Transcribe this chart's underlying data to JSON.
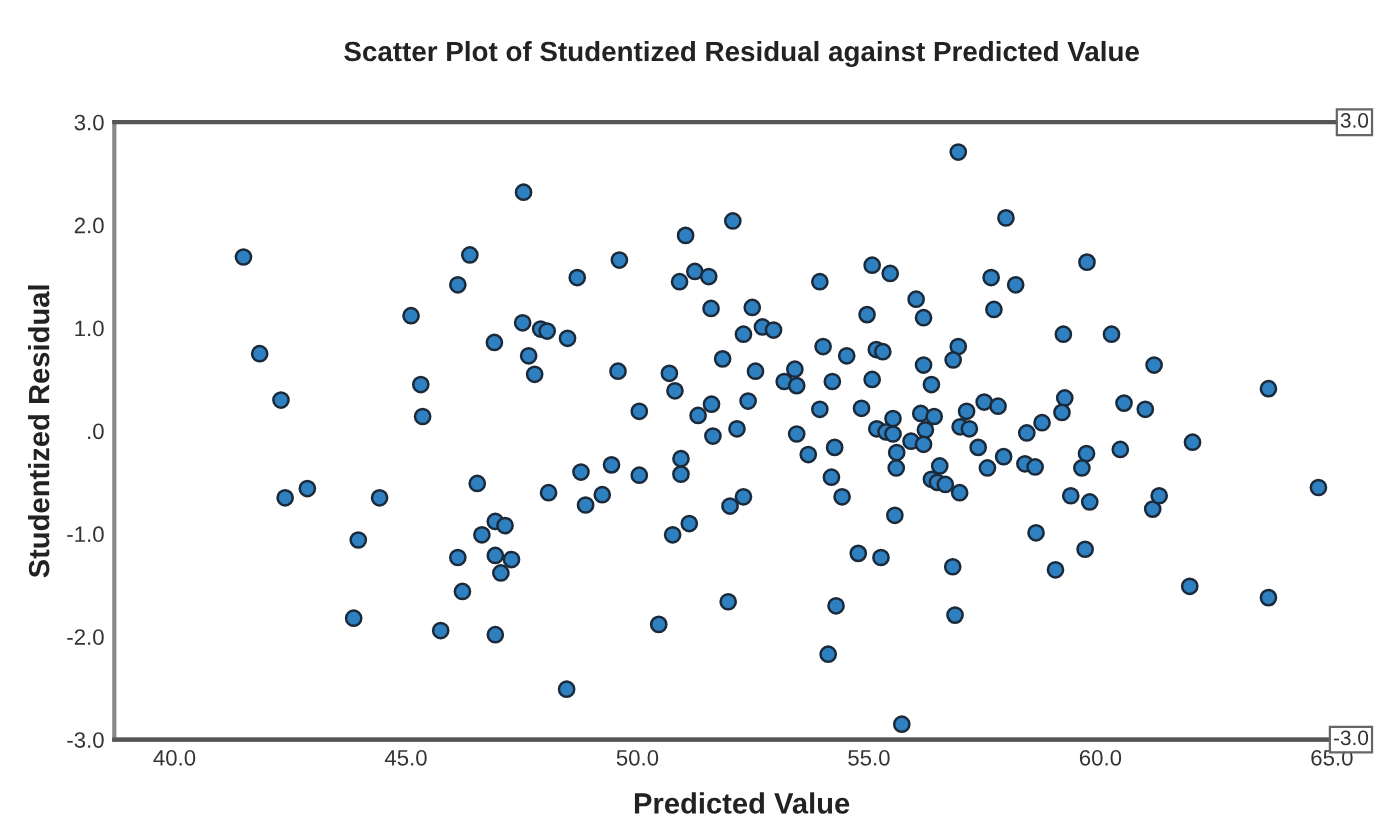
{
  "chart_data": {
    "type": "scatter",
    "title": "Scatter Plot of Studentized Residual against Predicted Value",
    "xlabel": "Predicted Value",
    "ylabel": "Studentized Residual",
    "xlim": [
      38.7,
      65.8
    ],
    "ylim": [
      -3.0,
      3.0
    ],
    "xticks": [
      {
        "value": 40,
        "label": "40.0"
      },
      {
        "value": 45,
        "label": "45.0"
      },
      {
        "value": 50,
        "label": "50.0"
      },
      {
        "value": 55,
        "label": "55.0"
      },
      {
        "value": 60,
        "label": "60.0"
      },
      {
        "value": 65,
        "label": "65.0"
      }
    ],
    "yticks": [
      {
        "value": -3,
        "label": "-3.0"
      },
      {
        "value": -2,
        "label": "-2.0"
      },
      {
        "value": -1,
        "label": "-1.0"
      },
      {
        "value": 0,
        "label": ".0"
      },
      {
        "value": 1,
        "label": "1.0"
      },
      {
        "value": 2,
        "label": "2.0"
      },
      {
        "value": 3,
        "label": "3.0"
      }
    ],
    "grid": false,
    "marker": "circle",
    "ref_lines": [
      {
        "axis": "y",
        "value": 3,
        "label": "3.0",
        "color": "#555555"
      },
      {
        "axis": "y",
        "value": -3,
        "label": "-3.0",
        "color": "#555555"
      }
    ],
    "series": [
      {
        "color": "#2f80c0",
        "x": [
          41.49,
          41.84,
          42.3,
          42.39,
          42.87,
          45.11,
          45.32,
          45.36,
          44.43,
          43.97,
          43.87,
          46.12,
          46.38,
          46.91,
          46.54,
          46.93,
          47.14,
          46.64,
          46.12,
          46.93,
          47.05,
          47.28,
          46.22,
          45.75,
          46.93,
          47.54,
          47.52,
          47.65,
          47.78,
          47.91,
          48.05,
          48.49,
          48.7,
          49.61,
          49.58,
          50.04,
          48.08,
          48.78,
          48.88,
          49.24,
          49.44,
          50.04,
          48.47,
          50.46,
          50.76,
          51.12,
          50.94,
          50.94,
          50.69,
          50.81,
          50.91,
          51.04,
          51.24,
          51.54,
          51.59,
          51.31,
          51.6,
          51.63,
          51.84,
          52.06,
          52.15,
          52.29,
          52.48,
          52.39,
          52.55,
          52.7,
          52.94,
          52.0,
          52.29,
          51.96,
          53.17,
          53.4,
          53.44,
          53.44,
          53.69,
          53.94,
          54.01,
          53.94,
          54.21,
          54.26,
          54.19,
          54.42,
          54.52,
          54.12,
          54.29,
          54.77,
          54.84,
          54.96,
          55.07,
          55.07,
          55.16,
          55.3,
          55.17,
          55.37,
          55.52,
          55.52,
          55.6,
          55.59,
          55.26,
          55.56,
          55.46,
          55.71,
          55.91,
          56.02,
          56.18,
          56.18,
          56.35,
          56.12,
          56.22,
          56.41,
          56.18,
          56.53,
          56.35,
          56.48,
          56.65,
          56.93,
          56.93,
          56.82,
          56.81,
          56.86,
          56.97,
          56.96,
          57.11,
          57.17,
          57.96,
          57.64,
          58.17,
          57.7,
          57.49,
          57.79,
          57.36,
          57.56,
          57.91,
          58.41,
          58.74,
          58.37,
          58.59,
          59.2,
          59.23,
          59.17,
          59.71,
          59.7,
          59.6,
          59.36,
          59.77,
          58.61,
          59.03,
          59.67,
          60.24,
          60.51,
          60.43,
          60.97,
          61.16,
          61.13,
          61.27,
          61.99,
          61.93,
          63.63,
          63.63,
          64.71
        ],
        "values": [
          1.69,
          0.75,
          0.3,
          -0.65,
          -0.56,
          1.12,
          0.45,
          0.14,
          -0.65,
          -1.06,
          -1.82,
          1.42,
          1.71,
          0.86,
          -0.51,
          -0.88,
          -0.92,
          -1.01,
          -1.23,
          -1.21,
          -1.38,
          -1.25,
          -1.56,
          -1.94,
          -1.98,
          2.32,
          1.05,
          0.73,
          0.55,
          0.99,
          0.97,
          0.9,
          1.49,
          1.66,
          0.58,
          0.19,
          -0.6,
          -0.4,
          -0.72,
          -0.62,
          -0.33,
          -0.43,
          -2.51,
          -1.88,
          -1.01,
          -0.9,
          -0.27,
          -0.42,
          0.56,
          0.39,
          1.45,
          1.9,
          1.55,
          1.5,
          1.19,
          0.15,
          0.26,
          -0.05,
          0.7,
          2.04,
          0.02,
          0.94,
          1.2,
          0.29,
          0.58,
          1.01,
          0.98,
          -0.73,
          -0.64,
          -1.66,
          0.48,
          0.6,
          0.44,
          -0.03,
          -0.23,
          1.45,
          0.82,
          0.21,
          0.48,
          -0.16,
          -0.45,
          -0.64,
          0.73,
          -2.17,
          -1.7,
          -1.19,
          0.22,
          1.13,
          1.61,
          0.5,
          0.79,
          0.77,
          0.02,
          -0.01,
          -0.03,
          0.12,
          -0.21,
          -0.36,
          -1.23,
          -0.82,
          1.53,
          -2.85,
          -0.1,
          1.28,
          1.1,
          0.64,
          0.45,
          0.17,
          0.01,
          0.14,
          -0.13,
          -0.34,
          -0.47,
          -0.5,
          -0.52,
          2.71,
          0.82,
          0.69,
          -1.32,
          -1.79,
          0.04,
          -0.6,
          0.19,
          0.02,
          2.07,
          1.49,
          1.42,
          1.18,
          0.28,
          0.24,
          -0.16,
          -0.36,
          -0.25,
          -0.02,
          0.08,
          -0.32,
          -0.35,
          0.94,
          0.32,
          0.18,
          1.64,
          -0.22,
          -0.36,
          -0.63,
          -0.69,
          -0.99,
          -1.35,
          -1.15,
          0.94,
          0.27,
          -0.18,
          0.21,
          0.64,
          -0.76,
          -0.63,
          -0.11,
          -1.51,
          0.41,
          -1.62,
          -0.55
        ]
      }
    ]
  }
}
